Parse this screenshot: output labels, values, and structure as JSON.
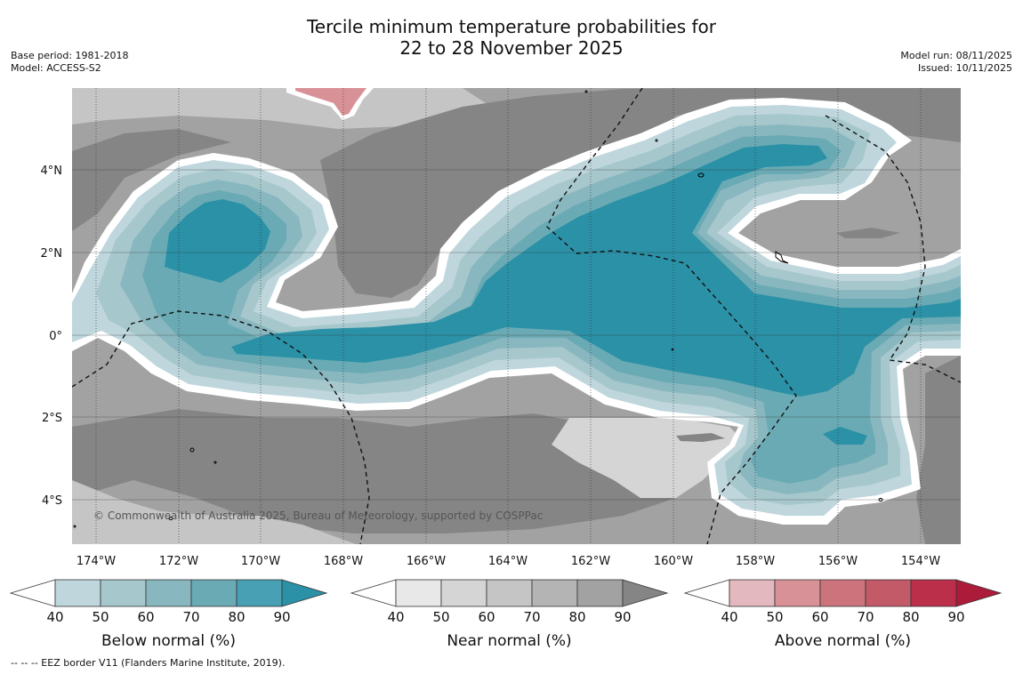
{
  "title": {
    "line1": "Tercile minimum temperature probabilities for",
    "line2": "22 to 28 November 2025"
  },
  "meta_left": {
    "base_period": "Base period: 1981-2018",
    "model": "Model: ACCESS-S2"
  },
  "meta_right": {
    "model_run": "Model run: 08/11/2025",
    "issued": "Issued: 10/11/2025"
  },
  "map": {
    "copyright": "© Commonwealth of Australia 2025, Bureau of Meteorology, supported by COSPPac",
    "lon_labels": [
      "174°W",
      "172°W",
      "170°W",
      "168°W",
      "166°W",
      "164°W",
      "162°W",
      "160°W",
      "158°W",
      "156°W",
      "154°W"
    ],
    "lat_labels": [
      "4°N",
      "2°N",
      "0°",
      "2°S",
      "4°S"
    ],
    "lon_range": [
      -174.6,
      -152.9
    ],
    "lat_range": [
      -5.0,
      6.0
    ],
    "regions": [
      {
        "category": "near",
        "level": 80
      },
      {
        "category": "near",
        "level": 70
      },
      {
        "category": "below",
        "level": 40
      },
      {
        "category": "below",
        "level": 50
      },
      {
        "category": "below",
        "level": 60
      },
      {
        "category": "below",
        "level": 70
      },
      {
        "category": "below",
        "level": 80
      },
      {
        "category": "above",
        "level": 50
      }
    ]
  },
  "legends": [
    {
      "title": "Below normal (%)",
      "ticks": [
        "40",
        "50",
        "60",
        "70",
        "80",
        "90"
      ],
      "colors": [
        "#bed6dc",
        "#a6c7cc",
        "#89b7bf",
        "#6aaab4",
        "#47a0b3",
        "#2b91a6"
      ]
    },
    {
      "title": "Near normal (%)",
      "ticks": [
        "40",
        "50",
        "60",
        "70",
        "80",
        "90"
      ],
      "colors": [
        "#e8e8e8",
        "#d5d5d5",
        "#c5c5c5",
        "#b4b4b4",
        "#a2a2a2",
        "#858585"
      ]
    },
    {
      "title": "Above normal (%)",
      "ticks": [
        "40",
        "50",
        "60",
        "70",
        "80",
        "90"
      ],
      "colors": [
        "#e3b8be",
        "#d99198",
        "#cd737c",
        "#c35a68",
        "#bb2f4b",
        "#ad1b3a"
      ]
    }
  ],
  "footnote": "--  --  -- EEZ border V11 (Flanders Marine Institute, 2019)."
}
